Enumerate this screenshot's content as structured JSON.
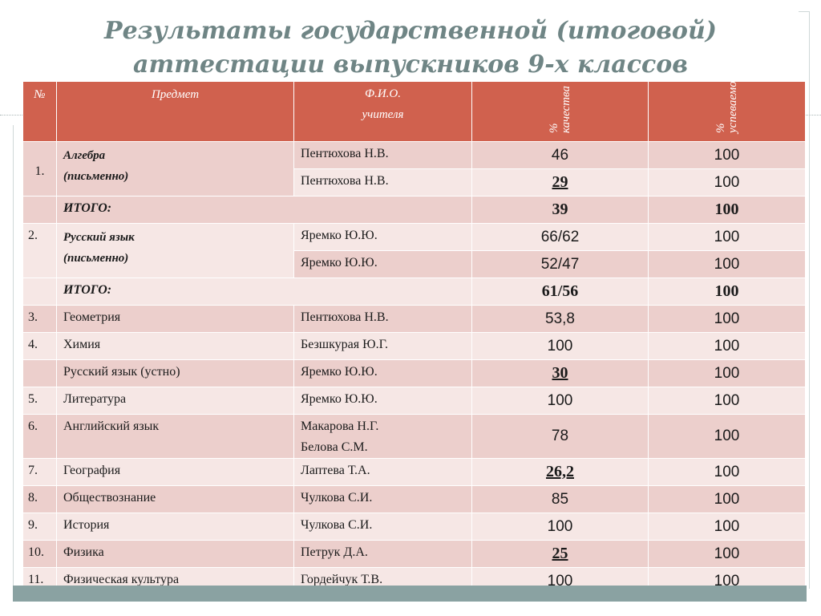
{
  "title": {
    "line1": "Результаты государственной (итоговой)",
    "line2": "аттестации выпускников 9-х классов"
  },
  "table": {
    "headers": {
      "num": "№",
      "subject": "Предмет",
      "teacher_line1": "Ф.И.О.",
      "teacher_line2": "учителя",
      "quality": "% качества",
      "success": "% успеваемости"
    },
    "rows": [
      {
        "num": "1.",
        "subject_line1": "Алгебра",
        "subject_line2": "(письменно)",
        "teacher": "Пентюхова Н.В.",
        "quality": "46",
        "success": "100"
      },
      {
        "teacher": "Пентюхова Н.В.",
        "quality": "29",
        "success": "100"
      },
      {
        "total_label": "ИТОГО:",
        "quality": "39",
        "success": "100"
      },
      {
        "num": "2.",
        "subject_line1": "Русский язык",
        "subject_line2": "(письменно)",
        "teacher": "Яремко Ю.Ю.",
        "quality": "66/62",
        "success": "100"
      },
      {
        "teacher": "Яремко Ю.Ю.",
        "quality": "52/47",
        "success": "100"
      },
      {
        "total_label": "ИТОГО:",
        "quality": "61/56",
        "success": "100"
      },
      {
        "num": "3.",
        "subject": "Геометрия",
        "teacher": "Пентюхова Н.В.",
        "quality": "53,8",
        "success": "100"
      },
      {
        "num": "4.",
        "subject": "Химия",
        "teacher": "Безшкурая Ю.Г.",
        "quality": "100",
        "success": "100"
      },
      {
        "num": "",
        "subject": "Русский язык (устно)",
        "teacher": "Яремко Ю.Ю.",
        "quality": "30",
        "success": "100"
      },
      {
        "num": "5.",
        "subject": "Литература",
        "teacher": "Яремко Ю.Ю.",
        "quality": "100",
        "success": "100"
      },
      {
        "num": "6.",
        "subject": "Английский язык",
        "teacher_line1": "Макарова Н.Г.",
        "teacher_line2": "Белова С.М.",
        "quality": "78",
        "success": "100"
      },
      {
        "num": "7.",
        "subject": "География",
        "teacher": "Лаптева Т.А.",
        "quality": "26,2",
        "success": "100"
      },
      {
        "num": "8.",
        "subject": "Обществознание",
        "teacher": "Чулкова С.И.",
        "quality": "85",
        "success": "100"
      },
      {
        "num": "9.",
        "subject": "История",
        "teacher": "Чулкова С.И.",
        "quality": "100",
        "success": "100"
      },
      {
        "num": "10.",
        "subject": "Физика",
        "teacher": "Петрук Д.А.",
        "quality": "25",
        "success": "100"
      },
      {
        "num": "11.",
        "subject": "Физическая культура",
        "teacher": "Гордейчук Т.В.",
        "quality": "100",
        "success": "100"
      }
    ]
  },
  "colors": {
    "header_bg": "#d0614e",
    "row_dark": "#eccfcc",
    "row_light": "#f6e7e5",
    "title": "#6f8585",
    "frame_bar": "#8aa2a2"
  }
}
